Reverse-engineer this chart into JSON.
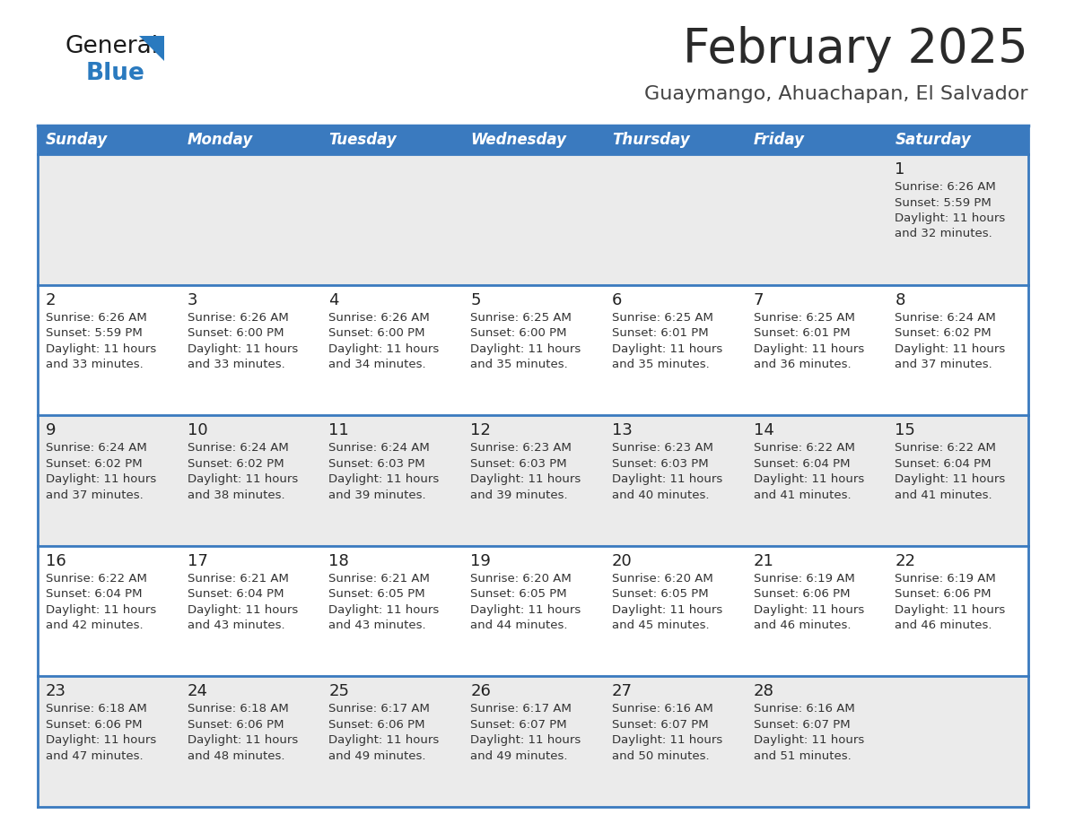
{
  "title": "February 2025",
  "subtitle": "Guaymango, Ahuachapan, El Salvador",
  "days_of_week": [
    "Sunday",
    "Monday",
    "Tuesday",
    "Wednesday",
    "Thursday",
    "Friday",
    "Saturday"
  ],
  "header_bg": "#3a7abf",
  "header_text_color": "#ffffff",
  "row_bg_gray": "#ebebeb",
  "row_bg_white": "#ffffff",
  "border_color": "#3a7abf",
  "cell_text_color": "#333333",
  "day_number_color": "#222222",
  "title_color": "#2a2a2a",
  "subtitle_color": "#444444",
  "logo_general_color": "#1a1a1a",
  "logo_blue_color": "#2a7abf",
  "triangle_color": "#2a7abf",
  "calendar_data": [
    [
      null,
      null,
      null,
      null,
      null,
      null,
      {
        "day": 1,
        "sunrise": "6:26 AM",
        "sunset": "5:59 PM",
        "daylight": "11 hours and 32 minutes"
      }
    ],
    [
      {
        "day": 2,
        "sunrise": "6:26 AM",
        "sunset": "5:59 PM",
        "daylight": "11 hours and 33 minutes"
      },
      {
        "day": 3,
        "sunrise": "6:26 AM",
        "sunset": "6:00 PM",
        "daylight": "11 hours and 33 minutes"
      },
      {
        "day": 4,
        "sunrise": "6:26 AM",
        "sunset": "6:00 PM",
        "daylight": "11 hours and 34 minutes"
      },
      {
        "day": 5,
        "sunrise": "6:25 AM",
        "sunset": "6:00 PM",
        "daylight": "11 hours and 35 minutes"
      },
      {
        "day": 6,
        "sunrise": "6:25 AM",
        "sunset": "6:01 PM",
        "daylight": "11 hours and 35 minutes"
      },
      {
        "day": 7,
        "sunrise": "6:25 AM",
        "sunset": "6:01 PM",
        "daylight": "11 hours and 36 minutes"
      },
      {
        "day": 8,
        "sunrise": "6:24 AM",
        "sunset": "6:02 PM",
        "daylight": "11 hours and 37 minutes"
      }
    ],
    [
      {
        "day": 9,
        "sunrise": "6:24 AM",
        "sunset": "6:02 PM",
        "daylight": "11 hours and 37 minutes"
      },
      {
        "day": 10,
        "sunrise": "6:24 AM",
        "sunset": "6:02 PM",
        "daylight": "11 hours and 38 minutes"
      },
      {
        "day": 11,
        "sunrise": "6:24 AM",
        "sunset": "6:03 PM",
        "daylight": "11 hours and 39 minutes"
      },
      {
        "day": 12,
        "sunrise": "6:23 AM",
        "sunset": "6:03 PM",
        "daylight": "11 hours and 39 minutes"
      },
      {
        "day": 13,
        "sunrise": "6:23 AM",
        "sunset": "6:03 PM",
        "daylight": "11 hours and 40 minutes"
      },
      {
        "day": 14,
        "sunrise": "6:22 AM",
        "sunset": "6:04 PM",
        "daylight": "11 hours and 41 minutes"
      },
      {
        "day": 15,
        "sunrise": "6:22 AM",
        "sunset": "6:04 PM",
        "daylight": "11 hours and 41 minutes"
      }
    ],
    [
      {
        "day": 16,
        "sunrise": "6:22 AM",
        "sunset": "6:04 PM",
        "daylight": "11 hours and 42 minutes"
      },
      {
        "day": 17,
        "sunrise": "6:21 AM",
        "sunset": "6:04 PM",
        "daylight": "11 hours and 43 minutes"
      },
      {
        "day": 18,
        "sunrise": "6:21 AM",
        "sunset": "6:05 PM",
        "daylight": "11 hours and 43 minutes"
      },
      {
        "day": 19,
        "sunrise": "6:20 AM",
        "sunset": "6:05 PM",
        "daylight": "11 hours and 44 minutes"
      },
      {
        "day": 20,
        "sunrise": "6:20 AM",
        "sunset": "6:05 PM",
        "daylight": "11 hours and 45 minutes"
      },
      {
        "day": 21,
        "sunrise": "6:19 AM",
        "sunset": "6:06 PM",
        "daylight": "11 hours and 46 minutes"
      },
      {
        "day": 22,
        "sunrise": "6:19 AM",
        "sunset": "6:06 PM",
        "daylight": "11 hours and 46 minutes"
      }
    ],
    [
      {
        "day": 23,
        "sunrise": "6:18 AM",
        "sunset": "6:06 PM",
        "daylight": "11 hours and 47 minutes"
      },
      {
        "day": 24,
        "sunrise": "6:18 AM",
        "sunset": "6:06 PM",
        "daylight": "11 hours and 48 minutes"
      },
      {
        "day": 25,
        "sunrise": "6:17 AM",
        "sunset": "6:06 PM",
        "daylight": "11 hours and 49 minutes"
      },
      {
        "day": 26,
        "sunrise": "6:17 AM",
        "sunset": "6:07 PM",
        "daylight": "11 hours and 49 minutes"
      },
      {
        "day": 27,
        "sunrise": "6:16 AM",
        "sunset": "6:07 PM",
        "daylight": "11 hours and 50 minutes"
      },
      {
        "day": 28,
        "sunrise": "6:16 AM",
        "sunset": "6:07 PM",
        "daylight": "11 hours and 51 minutes"
      },
      null
    ]
  ],
  "figsize": [
    11.88,
    9.18
  ],
  "dpi": 100
}
